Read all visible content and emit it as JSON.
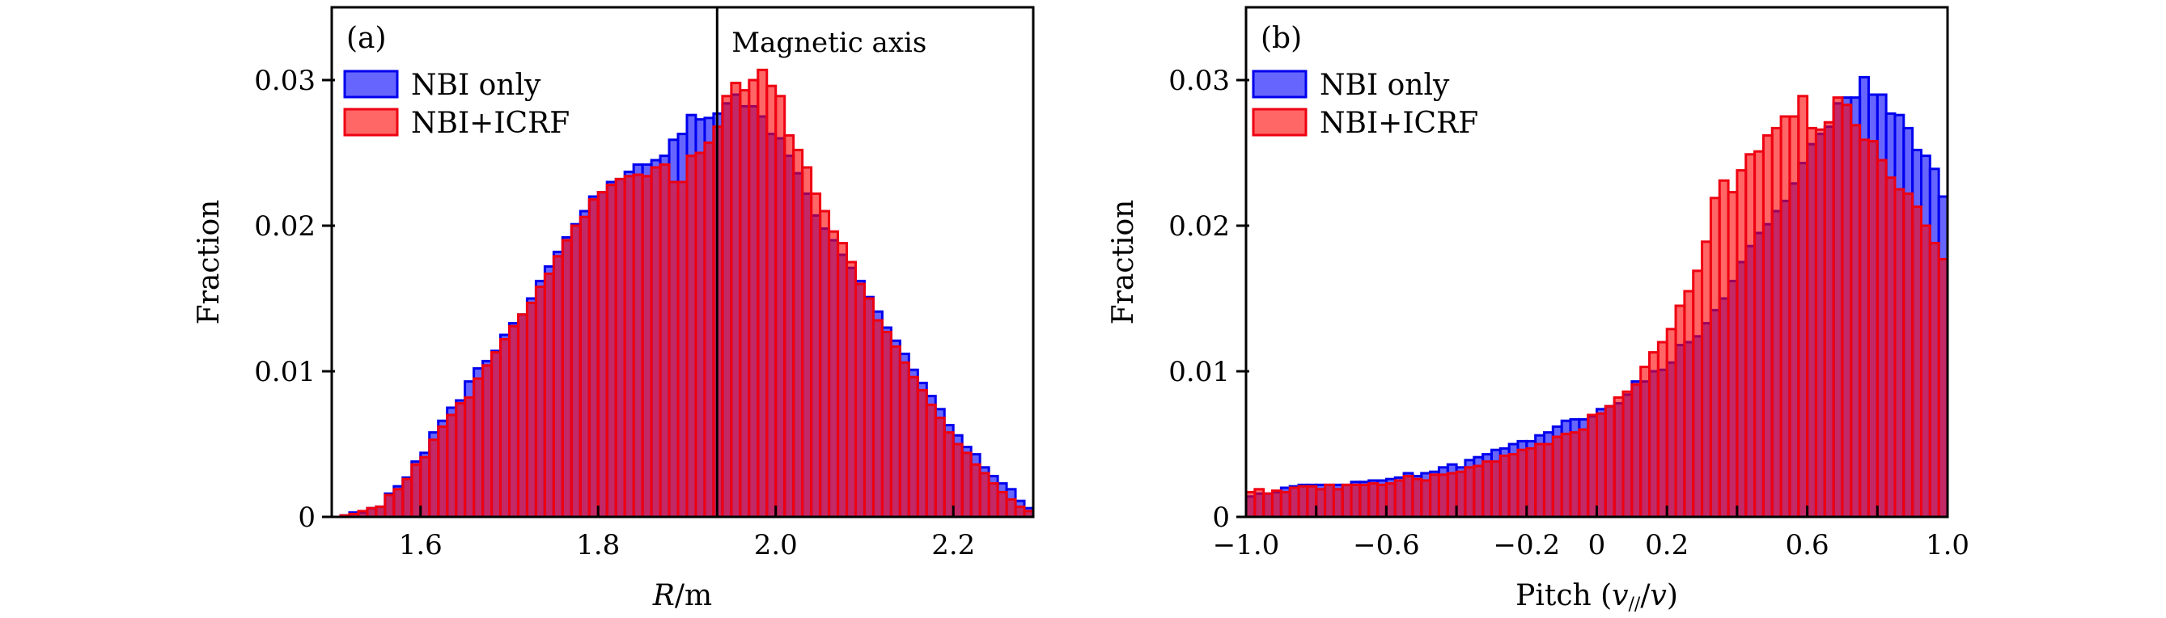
{
  "figure": {
    "colors": {
      "nbi_only_fill": "#6666ff",
      "nbi_only_edge": "#0000ee",
      "nbi_icrf_fill": "#ff6666",
      "nbi_icrf_edge": "#ee0011",
      "overlap_fill": "#c62a6a"
    }
  },
  "chart_data": [
    {
      "type": "bar",
      "subtype": "overlaid-histogram",
      "panel_label": "(a)",
      "title": "",
      "xlabel": "R/m",
      "ylabel": "Fraction",
      "xlim": [
        1.5,
        2.29
      ],
      "ylim": [
        0,
        0.035
      ],
      "xticks": [
        1.6,
        1.8,
        2.0,
        2.2
      ],
      "xtick_labels": [
        "1.6",
        "1.8",
        "2.0",
        "2.2"
      ],
      "yticks": [
        0,
        0.01,
        0.02,
        0.03
      ],
      "ytick_labels": [
        "0",
        "0.01",
        "0.02",
        "0.03"
      ],
      "grid": false,
      "legend_position": "top-left",
      "annotation": {
        "text": "Magnetic axis",
        "x": 1.934
      },
      "bin_start": 1.5,
      "bin_width": 0.01,
      "series": [
        {
          "name": "NBI only",
          "values": [
            0.0,
            0.0001,
            0.0003,
            0.0003,
            0.0006,
            0.0007,
            0.0016,
            0.0021,
            0.0027,
            0.0038,
            0.0044,
            0.0058,
            0.0066,
            0.0075,
            0.008,
            0.0093,
            0.0102,
            0.0107,
            0.0114,
            0.0125,
            0.0133,
            0.0139,
            0.015,
            0.0162,
            0.0172,
            0.0182,
            0.0192,
            0.0201,
            0.021,
            0.022,
            0.0223,
            0.023,
            0.0232,
            0.0237,
            0.0242,
            0.0242,
            0.0245,
            0.0248,
            0.0259,
            0.0263,
            0.0276,
            0.0273,
            0.0274,
            0.0277,
            0.0284,
            0.029,
            0.0282,
            0.0282,
            0.0275,
            0.0263,
            0.026,
            0.0248,
            0.0236,
            0.0222,
            0.0207,
            0.0198,
            0.019,
            0.018,
            0.0171,
            0.0162,
            0.0151,
            0.0141,
            0.013,
            0.0121,
            0.0112,
            0.0101,
            0.0092,
            0.0083,
            0.0074,
            0.0063,
            0.0056,
            0.0048,
            0.0043,
            0.0034,
            0.0028,
            0.0023,
            0.0019,
            0.0011,
            0.0006,
            0.0003
          ]
        },
        {
          "name": "NBI+ICRF",
          "values": [
            0.0,
            0.0001,
            0.0002,
            0.0004,
            0.0006,
            0.0007,
            0.0015,
            0.0019,
            0.0026,
            0.0036,
            0.0041,
            0.0053,
            0.0062,
            0.007,
            0.0078,
            0.0082,
            0.0095,
            0.0104,
            0.0113,
            0.0122,
            0.0131,
            0.0139,
            0.0147,
            0.0158,
            0.0167,
            0.0179,
            0.019,
            0.02,
            0.0206,
            0.0218,
            0.0223,
            0.0228,
            0.0232,
            0.0234,
            0.0235,
            0.0234,
            0.024,
            0.0242,
            0.023,
            0.023,
            0.0248,
            0.025,
            0.0257,
            0.0268,
            0.0289,
            0.0298,
            0.0293,
            0.03,
            0.0307,
            0.0296,
            0.0289,
            0.0262,
            0.0252,
            0.024,
            0.0222,
            0.021,
            0.0196,
            0.0188,
            0.0175,
            0.016,
            0.015,
            0.0135,
            0.0127,
            0.0117,
            0.0106,
            0.0096,
            0.0087,
            0.0077,
            0.0068,
            0.0058,
            0.005,
            0.0044,
            0.0036,
            0.003,
            0.0023,
            0.0017,
            0.0012,
            0.0007,
            0.0004,
            0.0001
          ]
        }
      ]
    },
    {
      "type": "bar",
      "subtype": "overlaid-histogram",
      "panel_label": "(b)",
      "title": "",
      "xlabel": "Pitch (v∥/v)",
      "ylabel": "Fraction",
      "xlim": [
        -1.0,
        1.0
      ],
      "ylim": [
        0,
        0.035
      ],
      "xticks": [
        -1.0,
        -0.8,
        -0.6,
        -0.4,
        -0.2,
        0,
        0.2,
        0.4,
        0.6,
        0.8,
        1.0
      ],
      "xtick_labels": [
        "−1.0",
        "",
        "−0.6",
        "",
        "−0.2",
        "0",
        "0.2",
        "",
        "0.6",
        "",
        "1.0"
      ],
      "yticks": [
        0,
        0.01,
        0.02,
        0.03
      ],
      "ytick_labels": [
        "0",
        "0.01",
        "0.02",
        "0.03"
      ],
      "grid": false,
      "legend_position": "top-left",
      "bin_start": -1.0,
      "bin_width": 0.025,
      "series": [
        {
          "name": "NBI only",
          "values": [
            0.0014,
            0.0016,
            0.0016,
            0.0017,
            0.002,
            0.0021,
            0.0022,
            0.0022,
            0.0022,
            0.0022,
            0.0022,
            0.0022,
            0.0024,
            0.0024,
            0.0025,
            0.0025,
            0.0026,
            0.0027,
            0.003,
            0.0028,
            0.003,
            0.0031,
            0.0034,
            0.0036,
            0.0034,
            0.0039,
            0.0041,
            0.0043,
            0.0046,
            0.0047,
            0.005,
            0.0052,
            0.0052,
            0.0056,
            0.0058,
            0.0062,
            0.0066,
            0.0067,
            0.0067,
            0.0069,
            0.0074,
            0.0076,
            0.0078,
            0.0084,
            0.0093,
            0.0093,
            0.01,
            0.0101,
            0.0106,
            0.0118,
            0.012,
            0.0124,
            0.0133,
            0.0142,
            0.015,
            0.0162,
            0.0175,
            0.0186,
            0.0195,
            0.0201,
            0.021,
            0.0217,
            0.0229,
            0.0243,
            0.0256,
            0.0263,
            0.0268,
            0.0284,
            0.0288,
            0.0288,
            0.0302,
            0.029,
            0.029,
            0.0277,
            0.0276,
            0.0267,
            0.0252,
            0.0248,
            0.0239,
            0.022,
            0.0206
          ]
        },
        {
          "name": "NBI+ICRF",
          "values": [
            0.0017,
            0.0019,
            0.0016,
            0.0018,
            0.0017,
            0.002,
            0.0021,
            0.0021,
            0.0019,
            0.0022,
            0.0019,
            0.0022,
            0.0022,
            0.0022,
            0.0023,
            0.0022,
            0.0023,
            0.0025,
            0.0028,
            0.0026,
            0.0025,
            0.0029,
            0.0029,
            0.003,
            0.0031,
            0.0034,
            0.0035,
            0.0038,
            0.0038,
            0.0042,
            0.0043,
            0.0046,
            0.0047,
            0.005,
            0.005,
            0.0055,
            0.0057,
            0.0058,
            0.006,
            0.007,
            0.0071,
            0.0076,
            0.0082,
            0.0086,
            0.0091,
            0.0103,
            0.0113,
            0.012,
            0.0129,
            0.0145,
            0.0155,
            0.0169,
            0.0189,
            0.0219,
            0.0231,
            0.0223,
            0.0238,
            0.0249,
            0.0251,
            0.0262,
            0.0267,
            0.0275,
            0.0275,
            0.0289,
            0.0267,
            0.0266,
            0.0271,
            0.0288,
            0.0283,
            0.0269,
            0.0259,
            0.0258,
            0.0245,
            0.0233,
            0.0225,
            0.0222,
            0.0213,
            0.02,
            0.0188,
            0.0177,
            0.0181
          ]
        }
      ]
    }
  ]
}
